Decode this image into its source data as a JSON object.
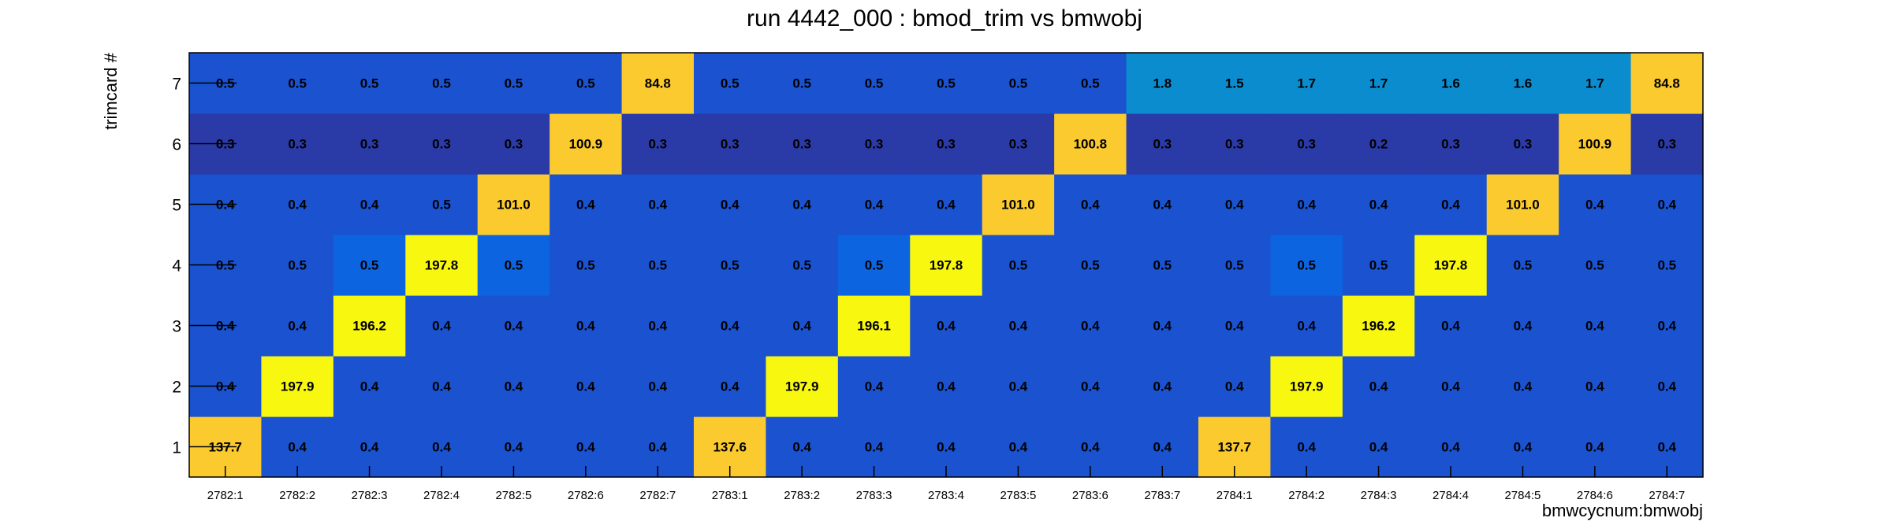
{
  "chart_data": {
    "type": "heatmap",
    "title": "run 4442_000 : bmod_trim vs bmwobj",
    "xlabel": "bmwcycnum:bmwobj",
    "ylabel": "trimcard #",
    "x_categories": [
      "2782:1",
      "2782:2",
      "2782:3",
      "2782:4",
      "2782:5",
      "2782:6",
      "2782:7",
      "2783:1",
      "2783:2",
      "2783:3",
      "2783:4",
      "2783:5",
      "2783:6",
      "2783:7",
      "2784:1",
      "2784:2",
      "2784:3",
      "2784:4",
      "2784:5",
      "2784:6",
      "2784:7"
    ],
    "y_categories": [
      "1",
      "2",
      "3",
      "4",
      "5",
      "6",
      "7"
    ],
    "values": [
      [
        "137.7",
        "0.4",
        "0.4",
        "0.4",
        "0.4",
        "0.4",
        "0.4",
        "137.6",
        "0.4",
        "0.4",
        "0.4",
        "0.4",
        "0.4",
        "0.4",
        "137.7",
        "0.4",
        "0.4",
        "0.4",
        "0.4",
        "0.4",
        "0.4"
      ],
      [
        "0.4",
        "197.9",
        "0.4",
        "0.4",
        "0.4",
        "0.4",
        "0.4",
        "0.4",
        "197.9",
        "0.4",
        "0.4",
        "0.4",
        "0.4",
        "0.4",
        "0.4",
        "197.9",
        "0.4",
        "0.4",
        "0.4",
        "0.4",
        "0.4"
      ],
      [
        "0.4",
        "0.4",
        "196.2",
        "0.4",
        "0.4",
        "0.4",
        "0.4",
        "0.4",
        "0.4",
        "196.1",
        "0.4",
        "0.4",
        "0.4",
        "0.4",
        "0.4",
        "0.4",
        "196.2",
        "0.4",
        "0.4",
        "0.4",
        "0.4"
      ],
      [
        "0.5",
        "0.5",
        "0.5",
        "197.8",
        "0.5",
        "0.5",
        "0.5",
        "0.5",
        "0.5",
        "0.5",
        "197.8",
        "0.5",
        "0.5",
        "0.5",
        "0.5",
        "0.5",
        "0.5",
        "197.8",
        "0.5",
        "0.5",
        "0.5"
      ],
      [
        "0.4",
        "0.4",
        "0.4",
        "0.5",
        "101.0",
        "0.4",
        "0.4",
        "0.4",
        "0.4",
        "0.4",
        "0.4",
        "101.0",
        "0.4",
        "0.4",
        "0.4",
        "0.4",
        "0.4",
        "0.4",
        "101.0",
        "0.4",
        "0.4"
      ],
      [
        "0.3",
        "0.3",
        "0.3",
        "0.3",
        "0.3",
        "100.9",
        "0.3",
        "0.3",
        "0.3",
        "0.3",
        "0.3",
        "0.3",
        "100.8",
        "0.3",
        "0.3",
        "0.3",
        "0.2",
        "0.3",
        "0.3",
        "100.9",
        "0.3"
      ],
      [
        "0.5",
        "0.5",
        "0.5",
        "0.5",
        "0.5",
        "0.5",
        "84.8",
        "0.5",
        "0.5",
        "0.5",
        "0.5",
        "0.5",
        "0.5",
        "1.8",
        "1.5",
        "1.7",
        "1.7",
        "1.6",
        "1.6",
        "1.7",
        "84.8"
      ]
    ],
    "colors": {
      "base": "#1a52d0",
      "bright_blue": "#0d64e0",
      "dark_blue": "#2a3ba8",
      "teal": "#0b8ccf",
      "orange": "#fbca2f",
      "yellow": "#f8f710",
      "axis": "#000000"
    },
    "cell_color_keys": [
      [
        "orange",
        "base",
        "base",
        "base",
        "base",
        "base",
        "base",
        "orange",
        "base",
        "base",
        "base",
        "base",
        "base",
        "base",
        "orange",
        "base",
        "base",
        "base",
        "base",
        "base",
        "base"
      ],
      [
        "base",
        "yellow",
        "base",
        "base",
        "base",
        "base",
        "base",
        "base",
        "yellow",
        "base",
        "base",
        "base",
        "base",
        "base",
        "base",
        "yellow",
        "base",
        "base",
        "base",
        "base",
        "base"
      ],
      [
        "base",
        "base",
        "yellow",
        "base",
        "base",
        "base",
        "base",
        "base",
        "base",
        "yellow",
        "base",
        "base",
        "base",
        "base",
        "base",
        "base",
        "yellow",
        "base",
        "base",
        "base",
        "base"
      ],
      [
        "base",
        "base",
        "bright_blue",
        "yellow",
        "bright_blue",
        "base",
        "base",
        "base",
        "base",
        "bright_blue",
        "yellow",
        "base",
        "base",
        "base",
        "base",
        "bright_blue",
        "base",
        "yellow",
        "base",
        "base",
        "base"
      ],
      [
        "base",
        "base",
        "base",
        "base",
        "orange",
        "base",
        "base",
        "base",
        "base",
        "base",
        "base",
        "orange",
        "base",
        "base",
        "base",
        "base",
        "base",
        "base",
        "orange",
        "base",
        "base"
      ],
      [
        "dark_blue",
        "dark_blue",
        "dark_blue",
        "dark_blue",
        "dark_blue",
        "orange",
        "dark_blue",
        "dark_blue",
        "dark_blue",
        "dark_blue",
        "dark_blue",
        "dark_blue",
        "orange",
        "dark_blue",
        "dark_blue",
        "dark_blue",
        "dark_blue",
        "dark_blue",
        "dark_blue",
        "orange",
        "dark_blue"
      ],
      [
        "base",
        "base",
        "base",
        "base",
        "base",
        "base",
        "orange",
        "base",
        "base",
        "base",
        "base",
        "base",
        "base",
        "teal",
        "teal",
        "teal",
        "teal",
        "teal",
        "teal",
        "teal",
        "orange"
      ]
    ]
  }
}
